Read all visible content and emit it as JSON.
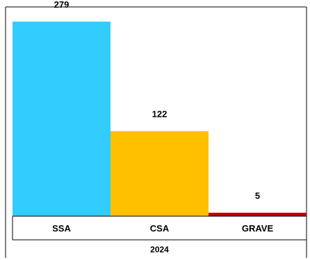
{
  "chart_data": {
    "type": "bar",
    "categories": [
      "SSA",
      "CSA",
      "GRAVE"
    ],
    "values": [
      279,
      122,
      5
    ],
    "data_labels": [
      "279",
      "122",
      "5"
    ],
    "colors": [
      "#33ccff",
      "#ffc000",
      "#c00000"
    ],
    "group_label": "2024",
    "ylim": [
      0,
      300
    ],
    "grid": false,
    "legend": "none"
  }
}
